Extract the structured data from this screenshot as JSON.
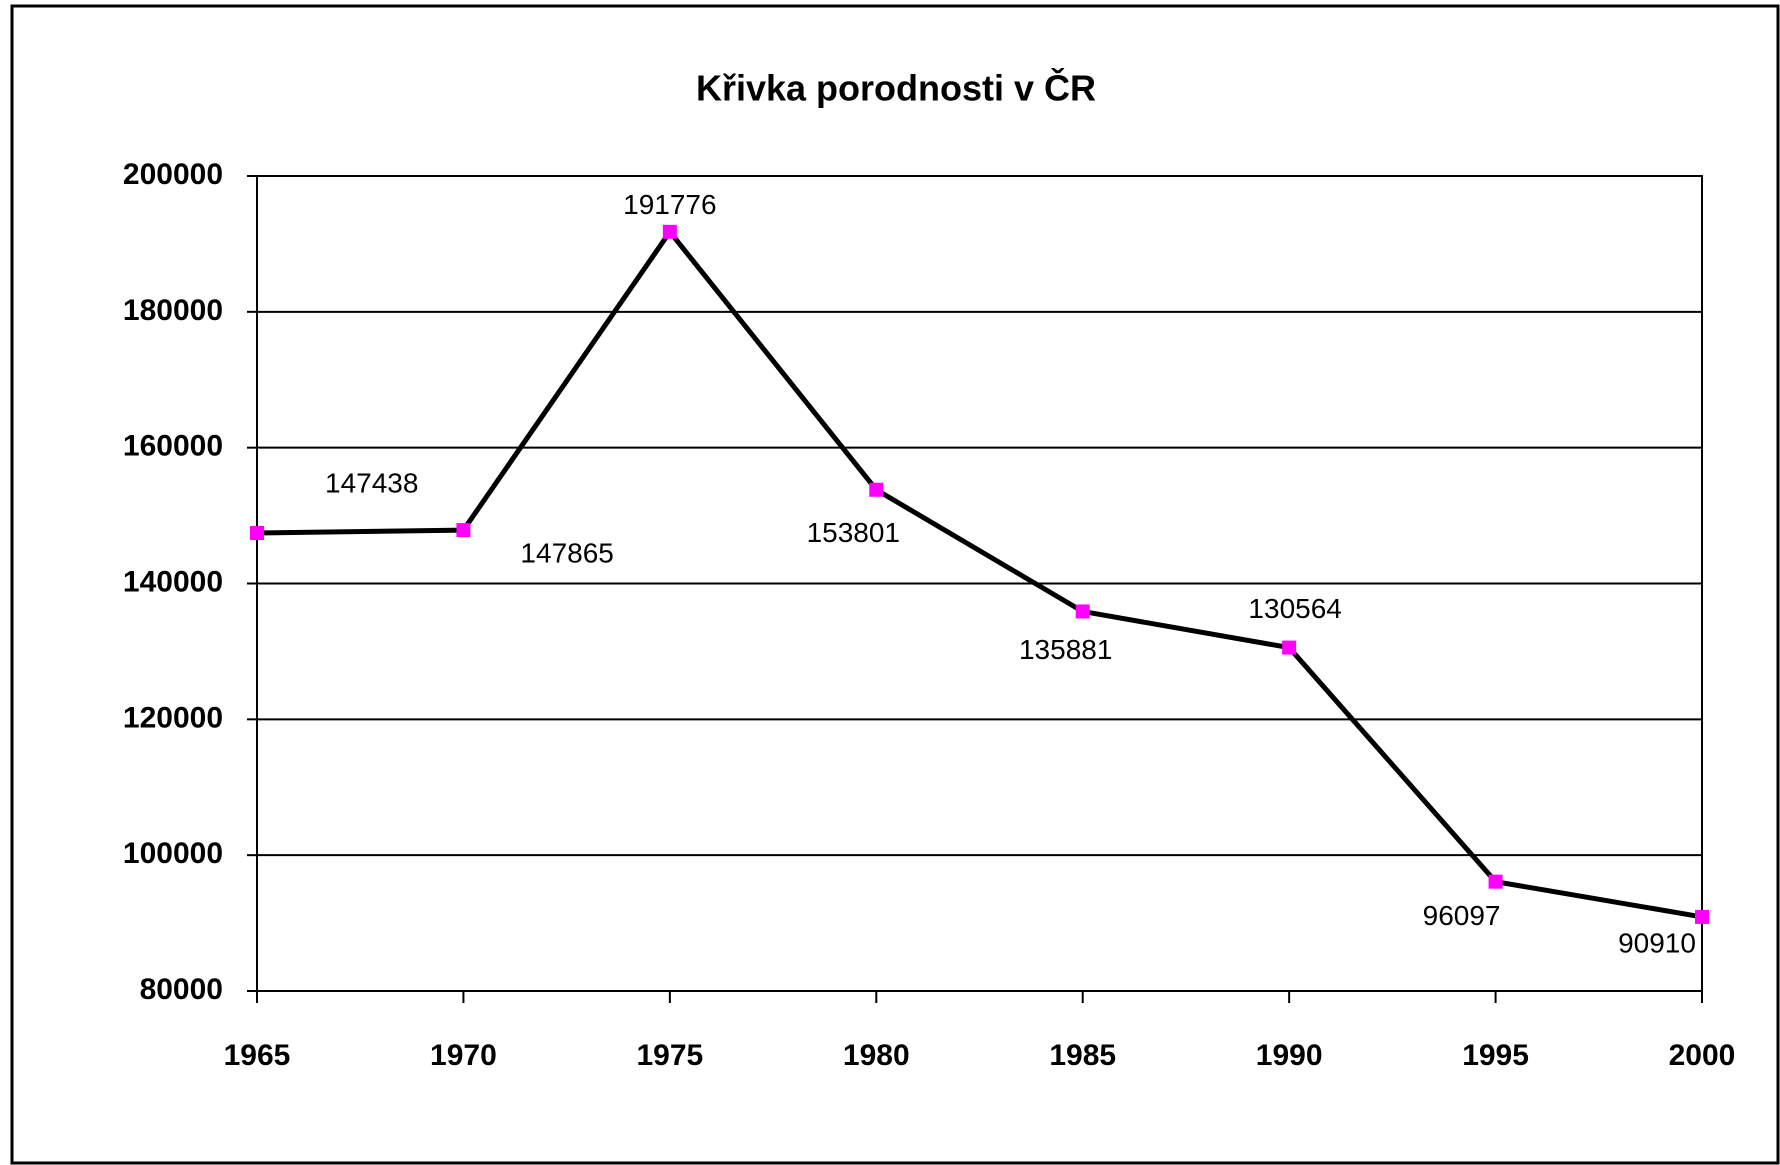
{
  "chart_data": {
    "type": "line",
    "title": "Křivka porodnosti v ČR",
    "x": [
      1965,
      1970,
      1975,
      1980,
      1985,
      1990,
      1995,
      2000
    ],
    "series": [
      {
        "color": "#000000",
        "marker_color": "#ff00ff",
        "values": [
          147438,
          147865,
          191776,
          153801,
          135881,
          130564,
          96097,
          90910
        ]
      }
    ],
    "xlim": [
      1965,
      2000
    ],
    "xticks": [
      1965,
      1970,
      1975,
      1980,
      1985,
      1990,
      1995,
      2000
    ],
    "ylim": [
      80000,
      200000
    ],
    "yticks": [
      80000,
      100000,
      120000,
      140000,
      160000,
      180000,
      200000
    ],
    "grid": true
  }
}
